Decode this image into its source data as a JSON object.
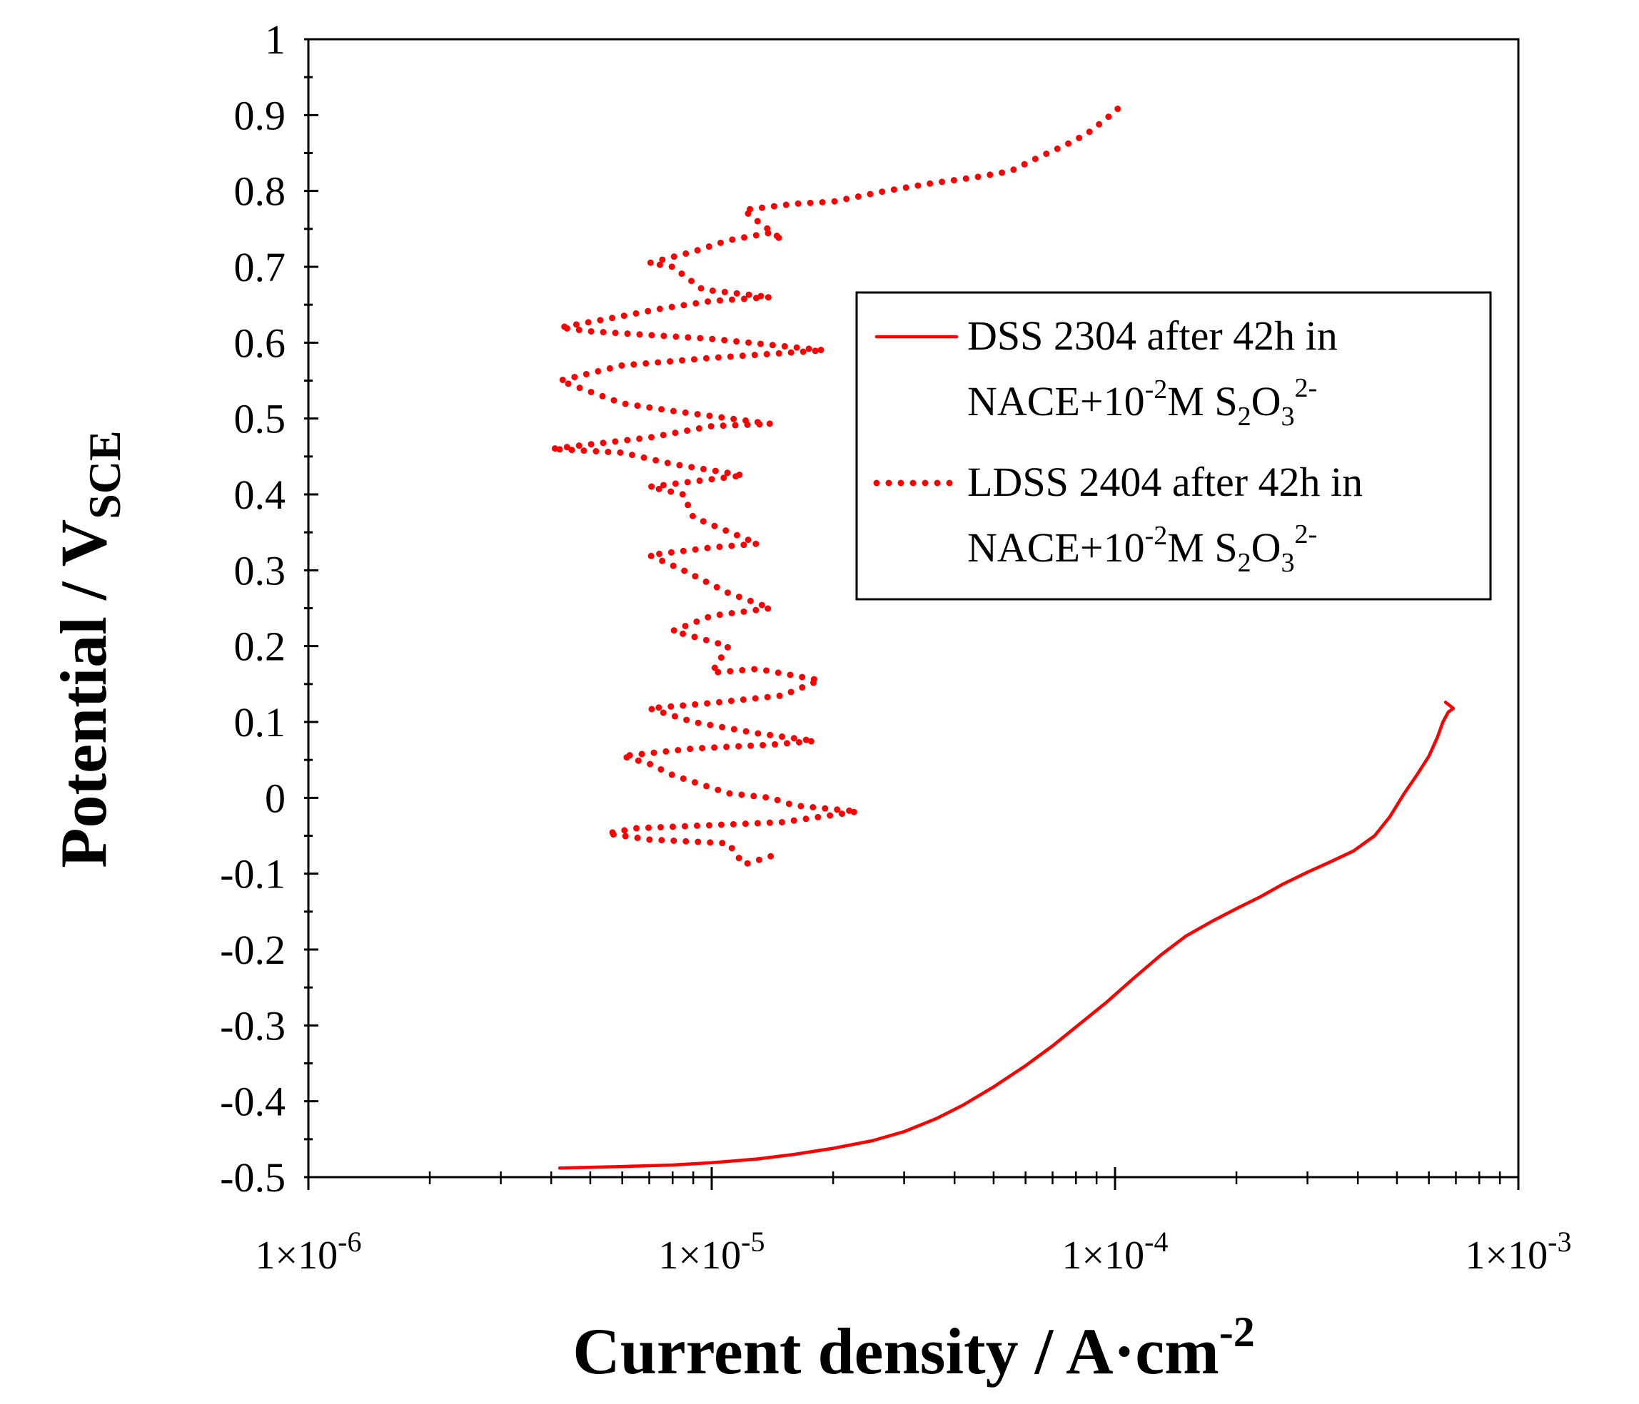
{
  "chart_data": {
    "type": "line",
    "title": "",
    "xlabel": "Current density / A·cm",
    "xlabel_superscript": "-2",
    "ylabel": "Potential / V",
    "ylabel_subscript": "SCE",
    "x_scale": "log",
    "xlim": [
      1e-06,
      0.001
    ],
    "ylim": [
      -0.5,
      1.0
    ],
    "x_ticks": [
      {
        "value": 1e-06,
        "base": "1×10",
        "exp": "-6"
      },
      {
        "value": 1e-05,
        "base": "1×10",
        "exp": "-5"
      },
      {
        "value": 0.0001,
        "base": "1×10",
        "exp": "-4"
      },
      {
        "value": 0.001,
        "base": "1×10",
        "exp": "-3"
      }
    ],
    "y_ticks": [
      {
        "value": 1.0,
        "label": "1"
      },
      {
        "value": 0.9,
        "label": "0.9"
      },
      {
        "value": 0.8,
        "label": "0.8"
      },
      {
        "value": 0.7,
        "label": "0.7"
      },
      {
        "value": 0.6,
        "label": "0.6"
      },
      {
        "value": 0.5,
        "label": "0.5"
      },
      {
        "value": 0.4,
        "label": "0.4"
      },
      {
        "value": 0.3,
        "label": "0.3"
      },
      {
        "value": 0.2,
        "label": "0.2"
      },
      {
        "value": 0.1,
        "label": "0.1"
      },
      {
        "value": 0.0,
        "label": "0"
      },
      {
        "value": -0.1,
        "label": "-0.1"
      },
      {
        "value": -0.2,
        "label": "-0.2"
      },
      {
        "value": -0.3,
        "label": "-0.3"
      },
      {
        "value": -0.4,
        "label": "-0.4"
      },
      {
        "value": -0.5,
        "label": "-0.5"
      }
    ],
    "legend_position": "upper-right",
    "series": [
      {
        "name": "DSS 2304 after 42h in NACE+10-2M S2O32-",
        "legend_line1": "DSS 2304 after 42h in",
        "style": "solid",
        "color": "#ff0000",
        "points": [
          [
            4.2e-06,
            -0.488
          ],
          [
            6e-06,
            -0.486
          ],
          [
            8e-06,
            -0.484
          ],
          [
            1e-05,
            -0.481
          ],
          [
            1.3e-05,
            -0.476
          ],
          [
            1.6e-05,
            -0.47
          ],
          [
            2e-05,
            -0.462
          ],
          [
            2.5e-05,
            -0.452
          ],
          [
            3e-05,
            -0.44
          ],
          [
            3.6e-05,
            -0.423
          ],
          [
            4.2e-05,
            -0.405
          ],
          [
            5e-05,
            -0.381
          ],
          [
            6e-05,
            -0.353
          ],
          [
            7e-05,
            -0.327
          ],
          [
            8e-05,
            -0.302
          ],
          [
            9.5e-05,
            -0.27
          ],
          [
            0.00011,
            -0.24
          ],
          [
            0.00013,
            -0.207
          ],
          [
            0.00015,
            -0.182
          ],
          [
            0.000175,
            -0.162
          ],
          [
            0.0002,
            -0.146
          ],
          [
            0.00023,
            -0.13
          ],
          [
            0.00026,
            -0.114
          ],
          [
            0.0003,
            -0.098
          ],
          [
            0.00034,
            -0.085
          ],
          [
            0.00039,
            -0.07
          ],
          [
            0.00044,
            -0.05
          ],
          [
            0.00048,
            -0.025
          ],
          [
            0.00052,
            0.005
          ],
          [
            0.00056,
            0.03
          ],
          [
            0.0006,
            0.055
          ],
          [
            0.00063,
            0.08
          ],
          [
            0.00065,
            0.1
          ],
          [
            0.00067,
            0.113
          ],
          [
            0.00069,
            0.118
          ],
          [
            0.00066,
            0.126
          ]
        ]
      },
      {
        "name": "LDSS 2404 after 42h in NACE+10-2M S2O32-",
        "legend_line1": "LDSS 2404 after 42h in",
        "style": "dotted",
        "color": "#ff0000",
        "points": [
          [
            1.4e-05,
            -0.077
          ],
          [
            1.2e-05,
            -0.088
          ],
          [
            1.1e-05,
            -0.06
          ],
          [
            7e-06,
            -0.055
          ],
          [
            5.5e-06,
            -0.047
          ],
          [
            6.5e-06,
            -0.04
          ],
          [
            1e-05,
            -0.036
          ],
          [
            1.5e-05,
            -0.032
          ],
          [
            2.3e-05,
            -0.018
          ],
          [
            1.6e-05,
            -0.01
          ],
          [
            1.4e-05,
            0.0
          ],
          [
            1.1e-05,
            0.006
          ],
          [
            8e-06,
            0.03
          ],
          [
            7e-06,
            0.045
          ],
          [
            6e-06,
            0.055
          ],
          [
            9e-06,
            0.065
          ],
          [
            1.4e-05,
            0.07
          ],
          [
            1.8e-05,
            0.075
          ],
          [
            1.3e-05,
            0.085
          ],
          [
            9e-06,
            0.1
          ],
          [
            7e-06,
            0.118
          ],
          [
            1e-05,
            0.125
          ],
          [
            1.5e-05,
            0.135
          ],
          [
            1.85e-05,
            0.155
          ],
          [
            1.3e-05,
            0.17
          ],
          [
            1e-05,
            0.165
          ],
          [
            1.1e-05,
            0.2
          ],
          [
            8e-06,
            0.22
          ],
          [
            1e-05,
            0.24
          ],
          [
            1.4e-05,
            0.25
          ],
          [
            1.1e-05,
            0.27
          ],
          [
            8.5e-06,
            0.3
          ],
          [
            7e-06,
            0.32
          ],
          [
            1e-05,
            0.33
          ],
          [
            1.3e-05,
            0.335
          ],
          [
            9e-06,
            0.37
          ],
          [
            8.5e-06,
            0.4
          ],
          [
            7e-06,
            0.41
          ],
          [
            1e-05,
            0.42
          ],
          [
            1.2e-05,
            0.425
          ],
          [
            8e-06,
            0.44
          ],
          [
            6e-06,
            0.455
          ],
          [
            4e-06,
            0.46
          ],
          [
            7e-06,
            0.475
          ],
          [
            1e-05,
            0.49
          ],
          [
            1.4e-05,
            0.493
          ],
          [
            8e-06,
            0.51
          ],
          [
            6e-06,
            0.52
          ],
          [
            4.2e-06,
            0.55
          ],
          [
            6e-06,
            0.57
          ],
          [
            1e-05,
            0.58
          ],
          [
            1.9e-05,
            0.59
          ],
          [
            1e-05,
            0.605
          ],
          [
            5e-06,
            0.615
          ],
          [
            4.2e-06,
            0.62
          ],
          [
            6e-06,
            0.635
          ],
          [
            7.5e-06,
            0.645
          ],
          [
            1e-05,
            0.655
          ],
          [
            1.4e-05,
            0.66
          ],
          [
            9.5e-06,
            0.67
          ],
          [
            8e-06,
            0.7
          ],
          [
            7e-06,
            0.705
          ],
          [
            9e-06,
            0.72
          ],
          [
            1.1e-05,
            0.735
          ],
          [
            1.4e-05,
            0.745
          ],
          [
            1.5e-05,
            0.735
          ],
          [
            1.3e-05,
            0.76
          ],
          [
            1.2e-05,
            0.775
          ],
          [
            1.6e-05,
            0.783
          ],
          [
            2e-05,
            0.786
          ],
          [
            2.7e-05,
            0.8
          ],
          [
            3.5e-05,
            0.81
          ],
          [
            4.5e-05,
            0.818
          ],
          [
            5.5e-05,
            0.826
          ],
          [
            6.5e-05,
            0.845
          ],
          [
            7.5e-05,
            0.86
          ],
          [
            8.5e-05,
            0.875
          ],
          [
            9.5e-05,
            0.895
          ],
          [
            0.000105,
            0.915
          ]
        ]
      }
    ],
    "legend_second_line": {
      "text": "NACE+10",
      "sup1": "-2",
      "unit": "M",
      "species_s": "S",
      "sub1": "2",
      "species_o": "O",
      "sub2": "3",
      "sup2": "2-"
    }
  }
}
